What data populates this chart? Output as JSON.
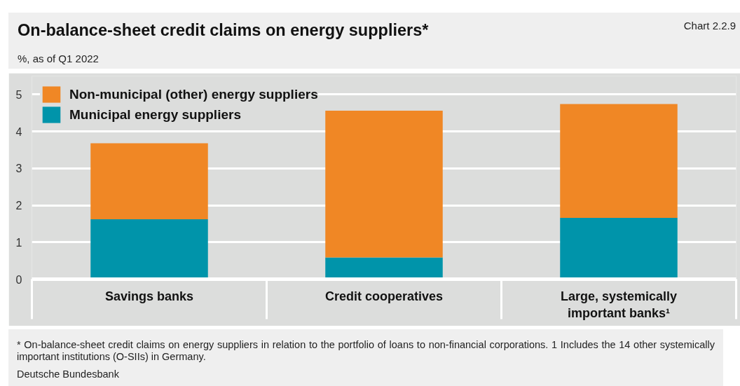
{
  "chart_data": {
    "type": "bar",
    "title": "On-balance-sheet credit claims on energy suppliers*",
    "subtitle": "%, as of Q1 2022",
    "categories": [
      "Savings banks",
      "Credit cooperatives",
      "Large, systemically important banks¹"
    ],
    "series": [
      {
        "name": "Municipal energy suppliers",
        "color": "#0094aa",
        "values": [
          1.62,
          0.59,
          1.66
        ]
      },
      {
        "name": "Non-municipal (other) energy suppliers",
        "color": "#f08725",
        "values": [
          2.06,
          3.97,
          3.08
        ]
      }
    ],
    "stacked": true,
    "ylim": [
      0,
      5.5
    ],
    "yticks": [
      0,
      1,
      2,
      3,
      4,
      5
    ],
    "grid": "y",
    "legend": "top left",
    "annotations": [
      "Chart 2.2.9",
      "* On-balance-sheet credit claims on energy suppliers in relation to the portfolio of loans to non-financial corporations. 1 Includes the 14 other systemically important institutions (O-SIIs) in Germany.",
      "Deutsche Bundesbank"
    ]
  }
}
